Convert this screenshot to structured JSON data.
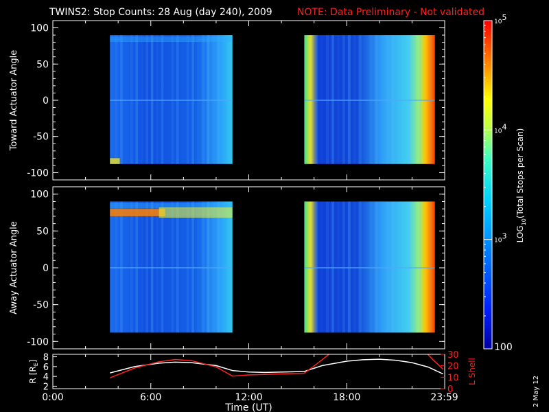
{
  "header": {
    "title": "TWINS2: Stop Counts: 28 Aug (day 240), 2009",
    "note": "NOTE: Data Preliminary - Not validated"
  },
  "side_date": "2 May 12",
  "colors": {
    "background": "#000000",
    "axis": "#ffffff",
    "note": "#ff2020",
    "l_shell": "#ff2020",
    "r_line": "#ffffff"
  },
  "colorbar": {
    "label": "LOG10(Total Stops per Scan)",
    "label_main": "LOG",
    "label_sub": "10",
    "label_rest": "(Total Stops per Scan)",
    "scale": "log",
    "range": [
      100,
      100000
    ],
    "ticks": [
      {
        "value": 100000,
        "base": "10",
        "exp": "5"
      },
      {
        "value": 10000,
        "base": "10",
        "exp": "4"
      },
      {
        "value": 1000,
        "base": "10",
        "exp": "3"
      },
      {
        "value": 100,
        "label": "100"
      }
    ]
  },
  "chart_data": [
    {
      "type": "heatmap",
      "ylabel": "Toward Actuator Angle",
      "ylim": [
        -110,
        110
      ],
      "xlim": [
        0,
        24
      ],
      "yticks": [
        "100",
        "50",
        "0",
        "-50",
        "-100"
      ],
      "ytick_values": [
        100,
        50,
        0,
        -50,
        -100
      ],
      "segments": [
        {
          "start_hour": 3.5,
          "end_hour": 11.0,
          "angle_range": [
            -88,
            90
          ],
          "level": "~10^2.7-10^3"
        },
        {
          "start_hour": 15.4,
          "end_hour": 23.4,
          "angle_range": [
            -88,
            90
          ],
          "level": "~10^2.5-10^4.8, rising toward end"
        }
      ]
    },
    {
      "type": "heatmap",
      "ylabel": "Away Actuator Angle",
      "ylim": [
        -110,
        110
      ],
      "xlim": [
        0,
        24
      ],
      "yticks": [
        "100",
        "50",
        "0",
        "-50",
        "-100"
      ],
      "ytick_values": [
        100,
        50,
        0,
        -50,
        -100
      ],
      "segments": [
        {
          "start_hour": 3.5,
          "end_hour": 11.0,
          "angle_range": [
            -88,
            90
          ],
          "level": "~10^2.7-10^3, band near 75-80 deg at ~10^4.5"
        },
        {
          "start_hour": 15.4,
          "end_hour": 23.4,
          "angle_range": [
            -88,
            90
          ],
          "level": "~10^2.5-10^4.8, rising toward end"
        }
      ]
    },
    {
      "type": "line",
      "xlabel": "Time (UT)",
      "xlim": [
        0,
        24
      ],
      "xticks": [
        "0:00",
        "6:00",
        "12:00",
        "18:00",
        "23:59"
      ],
      "xtick_values": [
        0,
        6,
        12,
        18,
        23.98
      ],
      "ylabel_left": "R [RE]",
      "ylabel_left_main": "R [R",
      "ylabel_left_sub": "E",
      "ylabel_left_end": "]",
      "ylabel_right": "L Shell",
      "ylim_left": [
        1.5,
        8.5
      ],
      "yticks_left": [
        "2",
        "4",
        "6",
        "8"
      ],
      "ytick_left_values": [
        2,
        4,
        6,
        8
      ],
      "ylim_right": [
        0,
        30
      ],
      "yticks_right": [
        "0",
        "10",
        "20",
        "30"
      ],
      "ytick_right_values": [
        0,
        10,
        20,
        30
      ],
      "series": [
        {
          "axis": "left",
          "x": [
            3.5,
            5,
            6.5,
            7.5,
            8.5,
            10,
            11,
            12,
            13,
            15.4,
            16.5,
            18,
            19,
            20,
            21,
            22,
            23,
            23.9
          ],
          "y": [
            4.7,
            6.0,
            6.7,
            6.9,
            6.8,
            6.2,
            5.2,
            4.9,
            4.8,
            5.0,
            6.2,
            7.1,
            7.4,
            7.5,
            7.3,
            6.8,
            5.9,
            4.5
          ]
        },
        {
          "axis": "right",
          "x": [
            3.5,
            5,
            6.5,
            7.5,
            8.5,
            10,
            11,
            12,
            13,
            15.4,
            16.2,
            17.0,
            22.9,
            23.3,
            23.9
          ],
          "y": [
            9.5,
            18,
            23.5,
            25.5,
            24.5,
            19,
            11,
            12,
            12.5,
            13.5,
            22,
            31,
            31,
            25,
            17
          ]
        }
      ]
    }
  ]
}
